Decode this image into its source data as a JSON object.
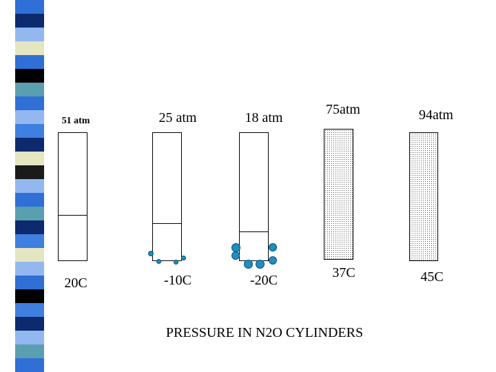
{
  "title": "PRESSURE IN N2O CYLINDERS",
  "cylinders": [
    {
      "pressure": "51 atm",
      "temperature": "20C"
    },
    {
      "pressure": "25 atm",
      "temperature": "-10C"
    },
    {
      "pressure": "18 atm",
      "temperature": "-20C"
    },
    {
      "pressure": "75atm",
      "temperature": "37C"
    },
    {
      "pressure": "94atm",
      "temperature": "45C"
    }
  ],
  "colors": {
    "bubble": "#1e8fbf",
    "stripes": [
      "#2f6fd6",
      "#0d2a6e",
      "#93b8f0",
      "#e4e6c2",
      "#000000",
      "#5a9fb0",
      "#3f7fe0",
      "#1a1a1a"
    ]
  }
}
